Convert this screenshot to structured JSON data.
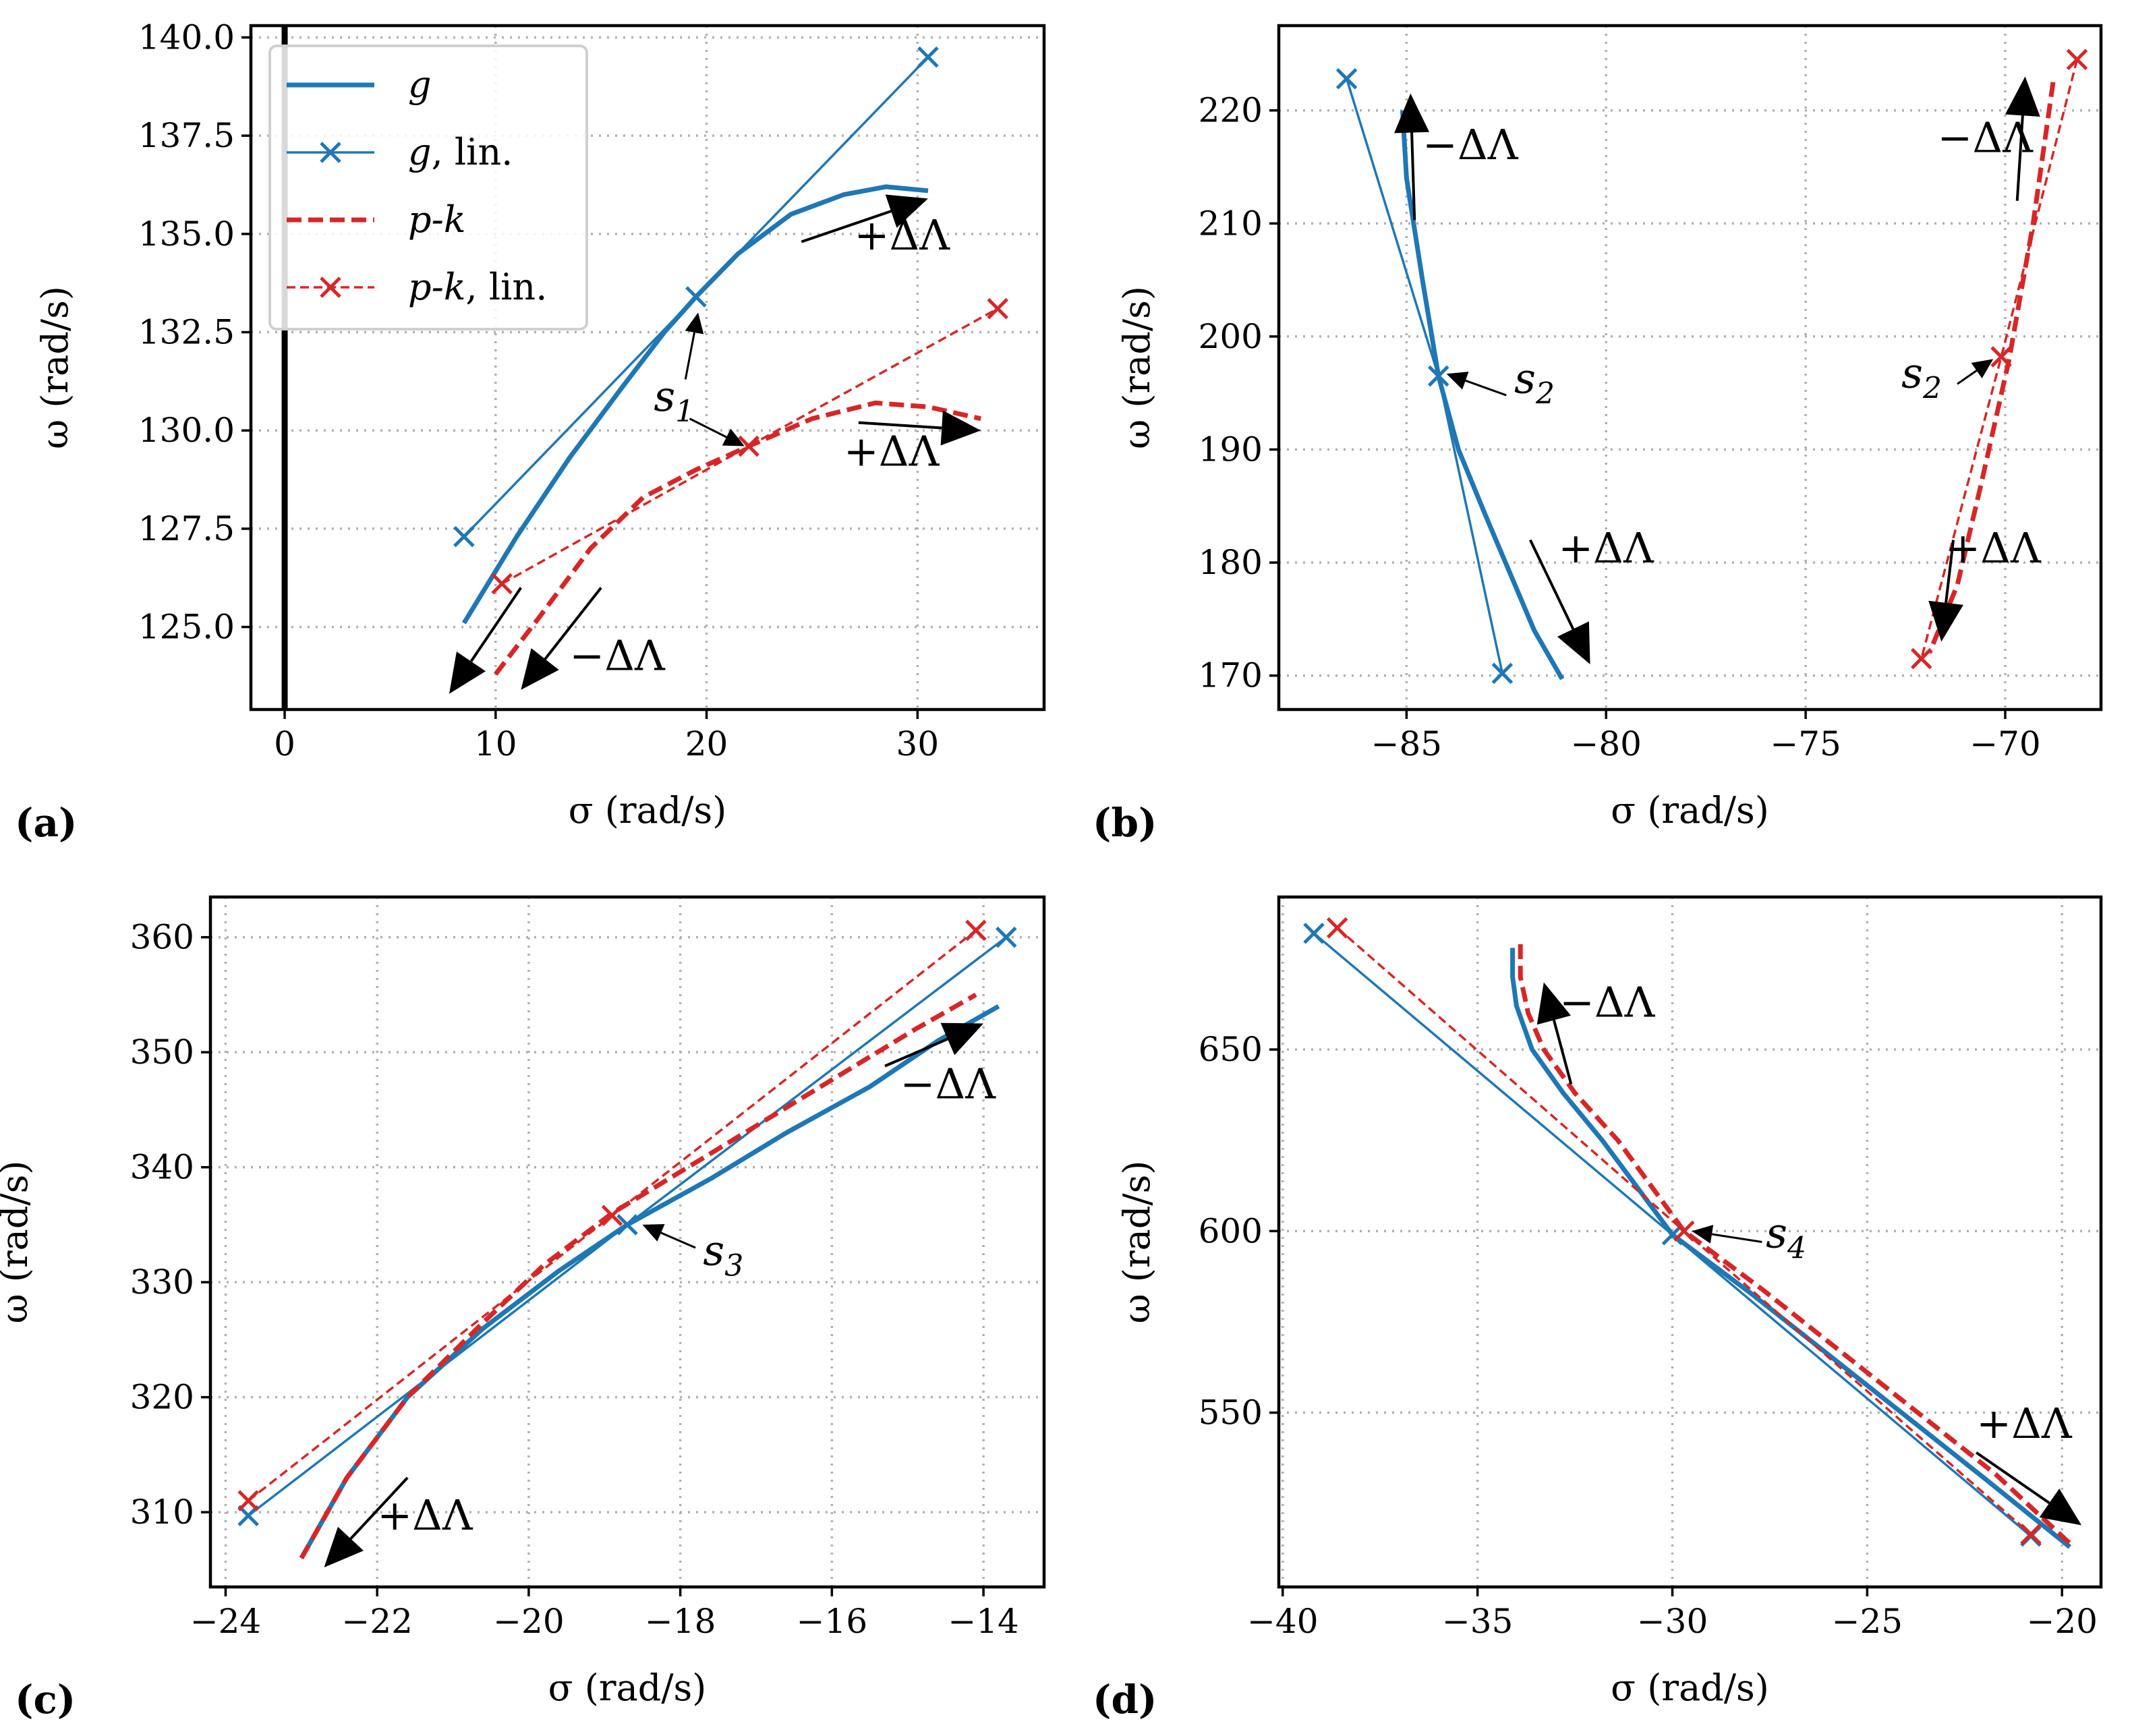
{
  "colors": {
    "g": "#1f77b4",
    "pk": "#d62728",
    "grid": "#b0b0b0",
    "arrow": "#000000"
  },
  "legend": [
    {
      "name": "g",
      "label_main": "g",
      "label_tail": "",
      "style": "line",
      "marker": false
    },
    {
      "name": "g-lin",
      "label_main": "g",
      "label_tail": ", lin.",
      "style": "line",
      "marker": true
    },
    {
      "name": "pk",
      "label_main": "p-k",
      "label_tail": "",
      "style": "dashed",
      "marker": false
    },
    {
      "name": "pk-lin",
      "label_main": "p-k",
      "label_tail": ", lin.",
      "style": "dashed",
      "marker": true
    }
  ],
  "chart_data": [
    {
      "panel": "(a)",
      "type": "line",
      "xlabel": "σ (rad/s)",
      "ylabel": "ω (rad/s)",
      "xlim": [
        -1.6,
        36
      ],
      "ylim": [
        122.9,
        140.3
      ],
      "xticks": [
        0,
        10,
        20,
        30
      ],
      "yticks": [
        125.0,
        127.5,
        130.0,
        132.5,
        135.0,
        137.5,
        140.0
      ],
      "ytick_format": 1,
      "grid": true,
      "legend_position": "upper-left",
      "zero_line_x": 0,
      "series": [
        {
          "name": "g",
          "style": "solid",
          "marker": false,
          "x": [
            8.5,
            11,
            13.5,
            16,
            18,
            19.5,
            21.5,
            24,
            26.5,
            28.5,
            30.5
          ],
          "y": [
            125.1,
            127.3,
            129.3,
            131.1,
            132.5,
            133.4,
            134.5,
            135.5,
            136.0,
            136.2,
            136.1
          ]
        },
        {
          "name": "g, lin.",
          "style": "solid",
          "marker": true,
          "x": [
            8.5,
            19.5,
            30.5
          ],
          "y": [
            127.3,
            133.4,
            139.5
          ]
        },
        {
          "name": "p-k",
          "style": "dashed",
          "marker": false,
          "x": [
            10,
            12,
            14.5,
            17,
            19.5,
            22,
            25,
            28,
            30.5,
            33
          ],
          "y": [
            123.8,
            125.2,
            127.0,
            128.3,
            129.0,
            129.6,
            130.3,
            130.7,
            130.6,
            130.3
          ]
        },
        {
          "name": "p-k, lin.",
          "style": "dashed",
          "marker": true,
          "x": [
            10.3,
            22,
            33.8
          ],
          "y": [
            126.1,
            129.6,
            133.1
          ]
        }
      ],
      "annotations": [
        {
          "text": "+ΔΛ",
          "sub": "",
          "pos": [
            27,
            134.6
          ],
          "arrow": [
            [
              24.5,
              134.8
            ],
            [
              30.5,
              135.9
            ]
          ]
        },
        {
          "text": "+ΔΛ",
          "sub": "",
          "pos": [
            26.5,
            129.1
          ],
          "arrow": [
            [
              27.2,
              130.2
            ],
            [
              33,
              130.0
            ]
          ]
        },
        {
          "text": "−ΔΛ",
          "sub": "",
          "pos": [
            13.5,
            123.9
          ],
          "arrow": [
            [
              11.2,
              126.0
            ],
            [
              7.8,
              123.3
            ]
          ]
        },
        {
          "text": "",
          "sub": "",
          "pos": null,
          "arrow": [
            [
              15.0,
              126.0
            ],
            [
              11.2,
              123.4
            ]
          ]
        },
        {
          "text": "s",
          "sub": "1",
          "pos": [
            17.5,
            130.5
          ],
          "arrow": [
            [
              19.0,
              131.3
            ],
            [
              19.6,
              133.0
            ]
          ]
        },
        {
          "text": "",
          "sub": "",
          "pos": null,
          "arrow": [
            [
              19.2,
              130.3
            ],
            [
              21.8,
              129.6
            ]
          ]
        }
      ]
    },
    {
      "panel": "(b)",
      "type": "line",
      "xlabel": "σ (rad/s)",
      "ylabel": "ω (rad/s)",
      "xlim": [
        -88.2,
        -67.6
      ],
      "ylim": [
        167.0,
        227.5
      ],
      "xticks": [
        -85,
        -80,
        -75,
        -70
      ],
      "yticks": [
        170,
        180,
        190,
        200,
        210,
        220
      ],
      "ytick_format": 0,
      "grid": true,
      "series": [
        {
          "name": "g",
          "style": "solid",
          "marker": false,
          "x": [
            -85.1,
            -85.0,
            -84.6,
            -84.2,
            -83.7,
            -83.0,
            -82.4,
            -81.8,
            -81.1
          ],
          "y": [
            220,
            214,
            205,
            196.5,
            190,
            184,
            179,
            174,
            169.7
          ]
        },
        {
          "name": "g, lin.",
          "style": "solid",
          "marker": true,
          "x": [
            -86.5,
            -84.2,
            -82.6
          ],
          "y": [
            222.8,
            196.5,
            170.2
          ]
        },
        {
          "name": "p-k",
          "style": "dashed",
          "marker": false,
          "x": [
            -68.8,
            -69.3,
            -69.9,
            -70.6,
            -71.2,
            -71.9
          ],
          "y": [
            222.5,
            210,
            198,
            187,
            178,
            172
          ]
        },
        {
          "name": "p-k, lin.",
          "style": "dashed",
          "marker": true,
          "x": [
            -68.2,
            -70.1,
            -72.1
          ],
          "y": [
            224.5,
            198.2,
            171.5
          ]
        }
      ],
      "annotations": [
        {
          "text": "−ΔΛ",
          "sub": "",
          "pos": [
            -84.6,
            215.7
          ],
          "arrow": [
            [
              -84.8,
              210.3
            ],
            [
              -84.9,
              221.5
            ]
          ]
        },
        {
          "text": "+ΔΛ",
          "sub": "",
          "pos": [
            -81.2,
            180.0
          ],
          "arrow": [
            [
              -81.9,
              182.0
            ],
            [
              -80.4,
              171.0
            ]
          ]
        },
        {
          "text": "s",
          "sub": "2",
          "pos": [
            -82.3,
            195.0
          ],
          "arrow": [
            [
              -82.5,
              194.8
            ],
            [
              -84.0,
              196.7
            ]
          ]
        },
        {
          "text": "−ΔΛ",
          "sub": "",
          "pos": [
            -71.7,
            216.3
          ],
          "arrow": [
            [
              -69.7,
              212.0
            ],
            [
              -69.5,
              223.0
            ]
          ]
        },
        {
          "text": "+ΔΛ",
          "sub": "",
          "pos": [
            -71.5,
            180.0
          ],
          "arrow": [
            [
              -71.3,
              182.0
            ],
            [
              -71.6,
              173.0
            ]
          ]
        },
        {
          "text": "s",
          "sub": "2",
          "pos": [
            -72.6,
            195.5
          ],
          "arrow": [
            [
              -71.2,
              195.8
            ],
            [
              -70.3,
              198.0
            ]
          ]
        }
      ]
    },
    {
      "panel": "(c)",
      "type": "line",
      "xlabel": "σ (rad/s)",
      "ylabel": "ω (rad/s)",
      "xlim": [
        -24.2,
        -13.2
      ],
      "ylim": [
        303.5,
        363.5
      ],
      "xticks": [
        -24,
        -22,
        -20,
        -18,
        -16,
        -14
      ],
      "yticks": [
        310,
        320,
        330,
        340,
        350,
        360
      ],
      "ytick_format": 0,
      "grid": true,
      "series": [
        {
          "name": "g",
          "style": "solid",
          "marker": false,
          "x": [
            -23.0,
            -22.4,
            -21.6,
            -20.6,
            -19.6,
            -18.7,
            -17.6,
            -16.6,
            -15.5,
            -14.6,
            -13.8
          ],
          "y": [
            306,
            313,
            320,
            326,
            331,
            335,
            339,
            343,
            347,
            351,
            354
          ]
        },
        {
          "name": "g, lin.",
          "style": "solid",
          "marker": true,
          "x": [
            -23.7,
            -18.7,
            -13.7
          ],
          "y": [
            309.7,
            335.0,
            360.0
          ]
        },
        {
          "name": "p-k",
          "style": "dashed",
          "marker": false,
          "x": [
            -23.0,
            -22.4,
            -21.6,
            -20.6,
            -19.8,
            -18.9,
            -17.9,
            -16.9,
            -15.9,
            -14.9,
            -14.1
          ],
          "y": [
            306,
            313,
            320,
            326.5,
            331.5,
            336,
            340,
            344,
            348,
            352,
            355
          ]
        },
        {
          "name": "p-k, lin.",
          "style": "dashed",
          "marker": true,
          "x": [
            -23.7,
            -18.9,
            -14.1
          ],
          "y": [
            311.0,
            335.8,
            360.6
          ]
        }
      ],
      "annotations": [
        {
          "text": "−ΔΛ",
          "sub": "",
          "pos": [
            -15.1,
            346.0
          ],
          "arrow": [
            [
              -15.3,
              348.8
            ],
            [
              -14.0,
              352.5
            ]
          ]
        },
        {
          "text": "+ΔΛ",
          "sub": "",
          "pos": [
            -22.0,
            308.5
          ],
          "arrow": [
            [
              -21.6,
              313.0
            ],
            [
              -22.7,
              305.2
            ]
          ]
        },
        {
          "text": "s",
          "sub": "3",
          "pos": [
            -17.7,
            331.5
          ],
          "arrow": [
            [
              -17.8,
              333.0
            ],
            [
              -18.5,
              335.0
            ]
          ]
        }
      ]
    },
    {
      "panel": "(d)",
      "type": "line",
      "xlabel": "σ (rad/s)",
      "ylabel": "ω (rad/s)",
      "xlim": [
        -40.1,
        -19.0
      ],
      "ylim": [
        502,
        692
      ],
      "xticks": [
        -40,
        -35,
        -30,
        -25,
        -20
      ],
      "yticks": [
        550,
        600,
        650
      ],
      "ytick_format": 0,
      "grid": true,
      "series": [
        {
          "name": "g",
          "style": "solid",
          "marker": false,
          "x": [
            -34.1,
            -34.1,
            -34.0,
            -33.6,
            -32.8,
            -31.8,
            -30.0,
            -28.0,
            -26.0,
            -24.0,
            -22.0,
            -19.8
          ],
          "y": [
            678,
            670,
            662,
            650,
            638,
            625,
            599,
            583,
            566,
            549,
            532,
            513
          ]
        },
        {
          "name": "g, lin.",
          "style": "solid",
          "marker": true,
          "x": [
            -39.2,
            -30.0,
            -20.8
          ],
          "y": [
            682.0,
            599.0,
            516.0
          ]
        },
        {
          "name": "p-k",
          "style": "dashed",
          "marker": false,
          "x": [
            -33.9,
            -33.9,
            -33.7,
            -33.3,
            -32.5,
            -31.4,
            -29.7,
            -27.7,
            -25.7,
            -23.7,
            -21.7,
            -19.8
          ],
          "y": [
            679,
            670,
            660,
            650,
            638,
            625,
            600,
            584,
            567,
            550,
            533,
            514
          ]
        },
        {
          "name": "p-k, lin.",
          "style": "dashed",
          "marker": true,
          "x": [
            -38.6,
            -29.7,
            -20.8
          ],
          "y": [
            683.5,
            600.0,
            516.5
          ]
        }
      ],
      "annotations": [
        {
          "text": "−ΔΛ",
          "sub": "",
          "pos": [
            -32.9,
            659.0
          ],
          "arrow": [
            [
              -32.6,
              640.5
            ],
            [
              -33.3,
              668.5
            ]
          ]
        },
        {
          "text": "+ΔΛ",
          "sub": "",
          "pos": [
            -22.2,
            543.0
          ],
          "arrow": [
            [
              -22.2,
              539.0
            ],
            [
              -19.5,
              519.0
            ]
          ]
        },
        {
          "text": "s",
          "sub": "4",
          "pos": [
            -27.6,
            595.5
          ],
          "arrow": [
            [
              -27.7,
              597.0
            ],
            [
              -29.5,
              600.0
            ]
          ]
        }
      ]
    }
  ]
}
